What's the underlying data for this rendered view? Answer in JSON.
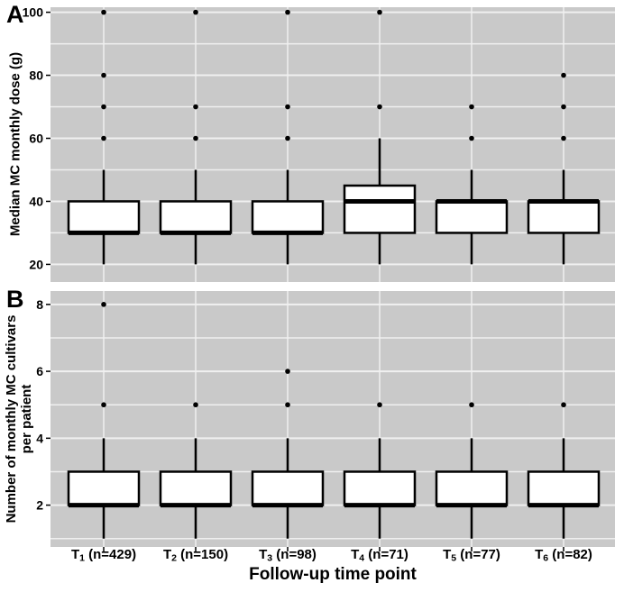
{
  "colors": {
    "page_bg": "#ffffff",
    "panel_bg": "#c9c9c9",
    "grid": "#f0f0f0",
    "box_fill": "#ffffff",
    "line": "#000000",
    "text": "#000000"
  },
  "x_axis": {
    "title": "Follow-up time point",
    "categories": [
      {
        "base": "T",
        "sub": "1",
        "rest": "(n=429)"
      },
      {
        "base": "T",
        "sub": "2",
        "rest": "(n=150)"
      },
      {
        "base": "T",
        "sub": "3",
        "rest": "(n=98)"
      },
      {
        "base": "T",
        "sub": "4",
        "rest": "(n=71)"
      },
      {
        "base": "T",
        "sub": "5",
        "rest": "(n=77)"
      },
      {
        "base": "T",
        "sub": "6",
        "rest": "(n=82)"
      }
    ]
  },
  "chart_data": [
    {
      "type": "boxplot",
      "panel_label": "A",
      "ylabel": "Median MC monthly dose (g)",
      "ylabel_lines": [
        "Median MC monthly dose (g)"
      ],
      "xlabel": "Follow-up time point",
      "categories": [
        "T1 (n=429)",
        "T2 (n=150)",
        "T3 (n=98)",
        "T4 (n=71)",
        "T5 (n=77)",
        "T6 (n=82)"
      ],
      "yticks": [
        20,
        40,
        60,
        80,
        100
      ],
      "ylim": [
        14.4,
        101.6
      ],
      "grid_step": 10,
      "grid": true,
      "boxes": [
        {
          "category": "T1 (n=429)",
          "median": 30,
          "q1": 30,
          "q3": 40,
          "whisker_low": 20,
          "whisker_high": 50,
          "outliers": [
            60,
            70,
            80,
            100
          ]
        },
        {
          "category": "T2 (n=150)",
          "median": 30,
          "q1": 30,
          "q3": 40,
          "whisker_low": 20,
          "whisker_high": 50,
          "outliers": [
            60,
            70,
            100
          ]
        },
        {
          "category": "T3 (n=98)",
          "median": 30,
          "q1": 30,
          "q3": 40,
          "whisker_low": 20,
          "whisker_high": 50,
          "outliers": [
            60,
            70,
            100
          ]
        },
        {
          "category": "T4 (n=71)",
          "median": 40,
          "q1": 30,
          "q3": 45,
          "whisker_low": 20,
          "whisker_high": 60,
          "outliers": [
            70,
            100
          ]
        },
        {
          "category": "T5 (n=77)",
          "median": 40,
          "q1": 30,
          "q3": 40,
          "whisker_low": 20,
          "whisker_high": 50,
          "outliers": [
            60,
            70
          ]
        },
        {
          "category": "T6 (n=82)",
          "median": 40,
          "q1": 30,
          "q3": 40,
          "whisker_low": 20,
          "whisker_high": 50,
          "outliers": [
            60,
            70,
            80
          ]
        }
      ]
    },
    {
      "type": "boxplot",
      "panel_label": "B",
      "ylabel": "Number of monthly MC cultivars per patient",
      "ylabel_lines": [
        "Number of monthly MC  cultivars",
        "per patient"
      ],
      "xlabel": "Follow-up time point",
      "categories": [
        "T1 (n=429)",
        "T2 (n=150)",
        "T3 (n=98)",
        "T4 (n=71)",
        "T5 (n=77)",
        "T6 (n=82)"
      ],
      "yticks": [
        2,
        4,
        6,
        8
      ],
      "ylim": [
        0.75,
        8.4
      ],
      "grid_step": 1,
      "grid": true,
      "boxes": [
        {
          "category": "T1 (n=429)",
          "median": 2,
          "q1": 2,
          "q3": 3,
          "whisker_low": 1,
          "whisker_high": 4,
          "outliers": [
            5,
            8
          ]
        },
        {
          "category": "T2 (n=150)",
          "median": 2,
          "q1": 2,
          "q3": 3,
          "whisker_low": 1,
          "whisker_high": 4,
          "outliers": [
            5
          ]
        },
        {
          "category": "T3 (n=98)",
          "median": 2,
          "q1": 2,
          "q3": 3,
          "whisker_low": 1,
          "whisker_high": 4,
          "outliers": [
            5,
            6
          ]
        },
        {
          "category": "T4 (n=71)",
          "median": 2,
          "q1": 2,
          "q3": 3,
          "whisker_low": 1,
          "whisker_high": 4,
          "outliers": [
            5
          ]
        },
        {
          "category": "T5 (n=77)",
          "median": 2,
          "q1": 2,
          "q3": 3,
          "whisker_low": 1,
          "whisker_high": 4,
          "outliers": [
            5
          ]
        },
        {
          "category": "T6 (n=82)",
          "median": 2,
          "q1": 2,
          "q3": 3,
          "whisker_low": 1,
          "whisker_high": 4,
          "outliers": [
            5
          ]
        }
      ]
    }
  ]
}
